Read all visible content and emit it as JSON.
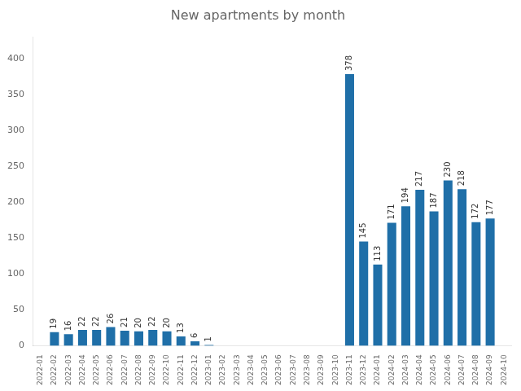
{
  "chart_data": {
    "type": "bar",
    "title": "New apartments by month",
    "categories": [
      "2022-01",
      "2022-02",
      "2022-03",
      "2022-04",
      "2022-05",
      "2022-06",
      "2022-07",
      "2022-08",
      "2022-09",
      "2022-10",
      "2022-11",
      "2022-12",
      "2023-01",
      "2023-02",
      "2023-03",
      "2023-04",
      "2023-05",
      "2023-06",
      "2023-07",
      "2023-08",
      "2023-09",
      "2023-10",
      "2023-11",
      "2023-12",
      "2024-01",
      "2024-02",
      "2024-03",
      "2024-04",
      "2024-05",
      "2024-06",
      "2024-07",
      "2024-08",
      "2024-09",
      "2024-10"
    ],
    "values": [
      0,
      19,
      16,
      22,
      22,
      26,
      21,
      20,
      22,
      20,
      13,
      6,
      1,
      0,
      0,
      0,
      0,
      0,
      0,
      0,
      0,
      0,
      378,
      145,
      113,
      171,
      194,
      217,
      187,
      230,
      218,
      172,
      177,
      0
    ],
    "value_labels": [
      null,
      "19",
      "16",
      "22",
      "22",
      "26",
      "21",
      "20",
      "22",
      "20",
      "13",
      "6",
      "1",
      null,
      null,
      null,
      null,
      null,
      null,
      null,
      null,
      null,
      "378",
      "145",
      "113",
      "171",
      "194",
      "217",
      "187",
      "230",
      "218",
      "172",
      "177",
      null
    ],
    "data_labels": true,
    "color": "#1f6fa8",
    "ylim": [
      0,
      430
    ],
    "yticks": [
      0,
      50,
      100,
      150,
      200,
      250,
      300,
      350,
      400
    ],
    "grid": false
  }
}
